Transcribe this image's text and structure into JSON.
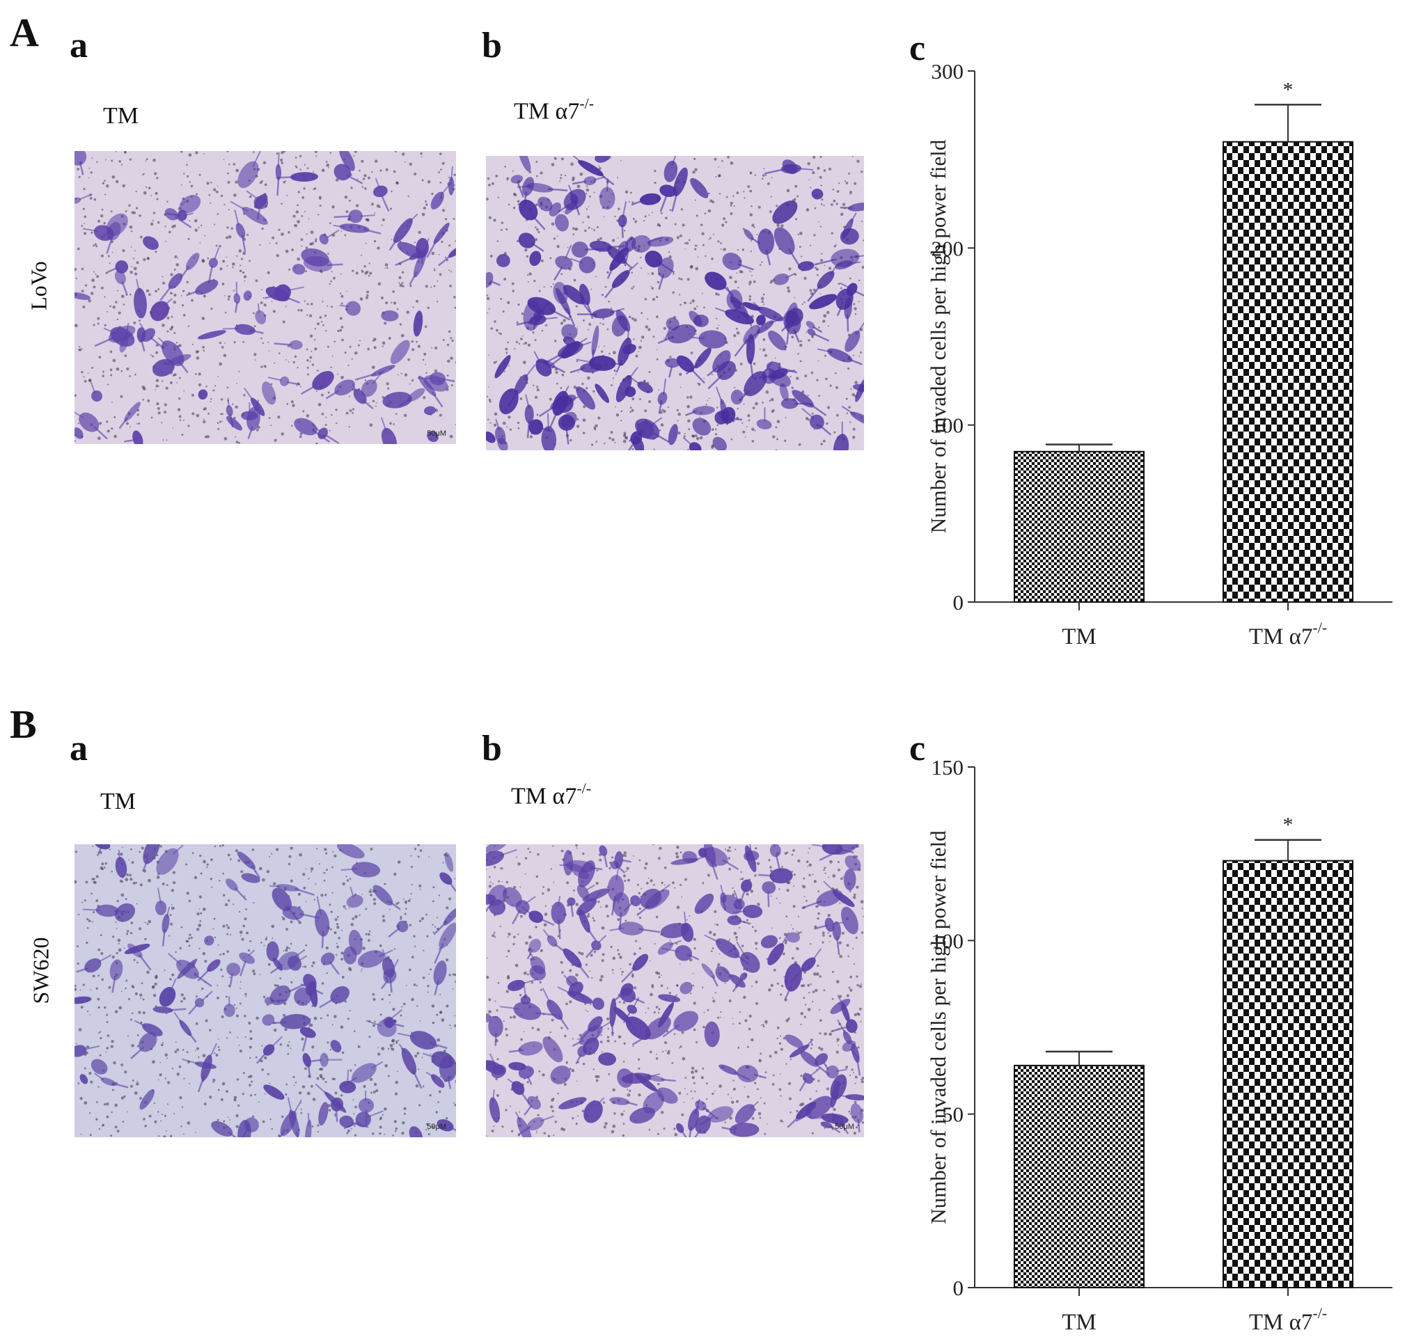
{
  "figure": {
    "panels": [
      {
        "id": "A",
        "letter": "A",
        "row_label": "LoVo",
        "micrographs": [
          {
            "letter": "a",
            "label": "TM",
            "scale_bar": "50μM",
            "stain_color": "#5b3fa8",
            "density": 0.55
          },
          {
            "letter": "b",
            "label": "TM α7",
            "label_sup": "-/-",
            "scale_bar": "",
            "stain_color": "#4a2f9e",
            "density": 0.95
          }
        ],
        "chart_letter": "c"
      },
      {
        "id": "B",
        "letter": "B",
        "row_label": "SW620",
        "micrographs": [
          {
            "letter": "a",
            "label": "TM",
            "scale_bar": "50μM",
            "stain_color": "#5a44a6",
            "density": 0.6
          },
          {
            "letter": "b",
            "label": "TM α7",
            "label_sup": "-/-",
            "scale_bar": "50μM",
            "stain_color": "#5a3fa6",
            "density": 0.95
          }
        ],
        "chart_letter": "c"
      }
    ]
  },
  "chart_data": [
    {
      "type": "bar",
      "categories": [
        "TM",
        "TM α7"
      ],
      "category_sup": [
        "",
        "-/-"
      ],
      "values": [
        85,
        260
      ],
      "error_upper": [
        89,
        281
      ],
      "significance": [
        "",
        "*"
      ],
      "ylabel": "Number of invaded cells per high power field",
      "ylim": [
        0,
        300
      ],
      "yticks": [
        0,
        100,
        200,
        300
      ],
      "patterns": [
        "fine-checker",
        "coarse-checker"
      ]
    },
    {
      "type": "bar",
      "categories": [
        "TM",
        "TM α7"
      ],
      "category_sup": [
        "",
        "-/-"
      ],
      "values": [
        64,
        123
      ],
      "error_upper": [
        68,
        129
      ],
      "significance": [
        "",
        "*"
      ],
      "ylabel": "Number of invaded cells per high power field",
      "ylim": [
        0,
        150
      ],
      "yticks": [
        0,
        50,
        100,
        150
      ],
      "patterns": [
        "fine-checker",
        "coarse-checker"
      ]
    }
  ]
}
